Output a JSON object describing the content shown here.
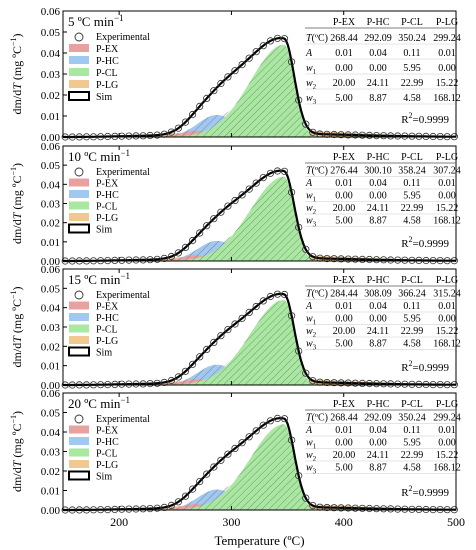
{
  "chart_data": [
    {
      "type": "area",
      "heating_rate_label": "5 ºC min",
      "heating_rate_sup": "−1",
      "r2": "0.9999",
      "table": {
        "columns": [
          "P-EX",
          "P-HC",
          "P-CL",
          "P-LG"
        ],
        "rows": [
          {
            "param": "T(ºC)",
            "values": [
              "268.44",
              "292.09",
              "350.24",
              "299.24"
            ]
          },
          {
            "param": "A",
            "values": [
              "0.01",
              "0.04",
              "0.11",
              "0.01"
            ]
          },
          {
            "param": "w1",
            "values": [
              "0.00",
              "0.00",
              "5.95",
              "0.00"
            ]
          },
          {
            "param": "w2",
            "values": [
              "20.00",
              "24.11",
              "22.99",
              "15.22"
            ]
          },
          {
            "param": "w3",
            "values": [
              "5.00",
              "8.87",
              "4.58",
              "168.12"
            ]
          }
        ]
      }
    },
    {
      "type": "area",
      "heating_rate_label": "10 ºC min",
      "heating_rate_sup": "−1",
      "r2": "0.9999",
      "table": {
        "columns": [
          "P-EX",
          "P-HC",
          "P-CL",
          "P-LG"
        ],
        "rows": [
          {
            "param": "T(ºC)",
            "values": [
              "276.44",
              "300.10",
              "358.24",
              "307.24"
            ]
          },
          {
            "param": "A",
            "values": [
              "0.01",
              "0.04",
              "0.11",
              "0.01"
            ]
          },
          {
            "param": "w1",
            "values": [
              "0.00",
              "0.00",
              "5.95",
              "0.00"
            ]
          },
          {
            "param": "w2",
            "values": [
              "20.00",
              "24.11",
              "22.99",
              "15.22"
            ]
          },
          {
            "param": "w3",
            "values": [
              "5.00",
              "8.87",
              "4.58",
              "168.12"
            ]
          }
        ]
      }
    },
    {
      "type": "area",
      "heating_rate_label": "15 ºC min",
      "heating_rate_sup": "−1",
      "r2": "0.9999",
      "table": {
        "columns": [
          "P-EX",
          "P-HC",
          "P-CL",
          "P-LG"
        ],
        "rows": [
          {
            "param": "T(ºC)",
            "values": [
              "284.44",
              "308.09",
              "366.24",
              "315.24"
            ]
          },
          {
            "param": "A",
            "values": [
              "0.01",
              "0.04",
              "0.11",
              "0.01"
            ]
          },
          {
            "param": "w1",
            "values": [
              "0.00",
              "0.00",
              "5.95",
              "0.00"
            ]
          },
          {
            "param": "w2",
            "values": [
              "20.00",
              "24.11",
              "22.99",
              "15.22"
            ]
          },
          {
            "param": "w3",
            "values": [
              "5.00",
              "8.87",
              "4.58",
              "168.12"
            ]
          }
        ]
      }
    },
    {
      "type": "area",
      "heating_rate_label": "20 ºC min",
      "heating_rate_sup": "−1",
      "r2": "0.9999",
      "table": {
        "columns": [
          "P-EX",
          "P-HC",
          "P-CL",
          "P-LG"
        ],
        "rows": [
          {
            "param": "T(ºC)",
            "values": [
              "268.44",
              "292.09",
              "350.24",
              "299.24"
            ]
          },
          {
            "param": "A",
            "values": [
              "0.01",
              "0.04",
              "0.11",
              "0.01"
            ]
          },
          {
            "param": "w1",
            "values": [
              "0.00",
              "0.00",
              "5.95",
              "0.00"
            ]
          },
          {
            "param": "w2",
            "values": [
              "20.00",
              "24.11",
              "22.99",
              "15.22"
            ]
          },
          {
            "param": "w3",
            "values": [
              "5.00",
              "8.87",
              "4.58",
              "168.12"
            ]
          }
        ]
      }
    }
  ],
  "shared": {
    "xlim": [
      150,
      500
    ],
    "ylim": [
      0,
      0.06
    ],
    "xticks": [
      200,
      300,
      400,
      500
    ],
    "yticks": [
      "0.00",
      "0.01",
      "0.02",
      "0.03",
      "0.04",
      "0.05",
      "0.06"
    ],
    "xlabel": "Temperature (ºC)",
    "ylabel_parts": [
      "dm/d",
      "T",
      " (mg ºC",
      "−1",
      ")"
    ],
    "r2_prefix": "R",
    "r2_sup": "2",
    "legend": [
      "Experimental",
      "P-EX",
      "P-HC",
      "P-CL",
      "P-LG",
      "Sim"
    ],
    "series_colors": {
      "P-EX": "#e8a0a0",
      "P-HC": "#a0c8f0",
      "P-CL": "#a8e8a0",
      "P-LG": "#f0c890",
      "shoulder": "#c8c8c8"
    }
  }
}
